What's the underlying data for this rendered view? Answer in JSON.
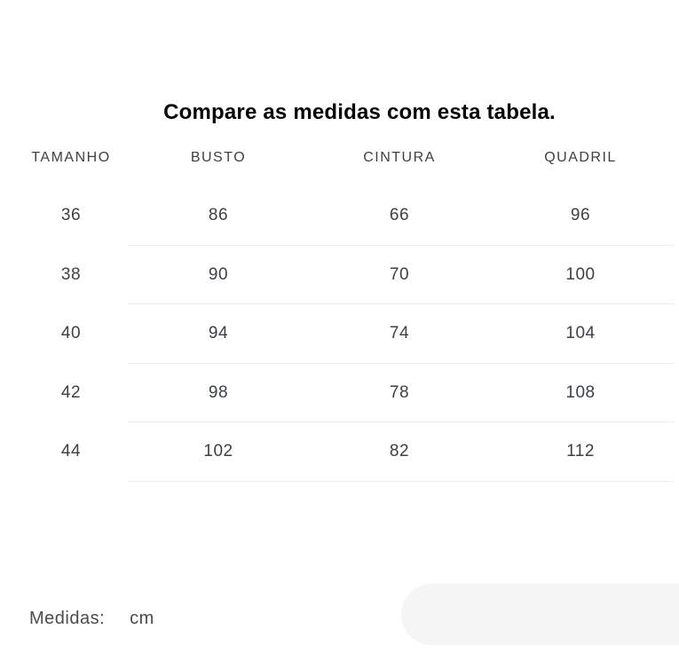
{
  "title": "Compare as medidas com esta tabela.",
  "table": {
    "headers": [
      "TAMANHO",
      "BUSTO",
      "CINTURA",
      "QUADRIL"
    ],
    "rows": [
      [
        "36",
        "86",
        "66",
        "96"
      ],
      [
        "38",
        "90",
        "70",
        "100"
      ],
      [
        "40",
        "94",
        "74",
        "104"
      ],
      [
        "42",
        "98",
        "78",
        "108"
      ],
      [
        "44",
        "102",
        "82",
        "112"
      ]
    ]
  },
  "footer": {
    "label": "Medidas:",
    "unit": "cm"
  },
  "colors": {
    "title_text": "#050505",
    "table_text": "#3c4146",
    "divider": "#ececec",
    "footer_text": "#4b4b4b",
    "placeholder_fill": "#f5f5f5"
  }
}
